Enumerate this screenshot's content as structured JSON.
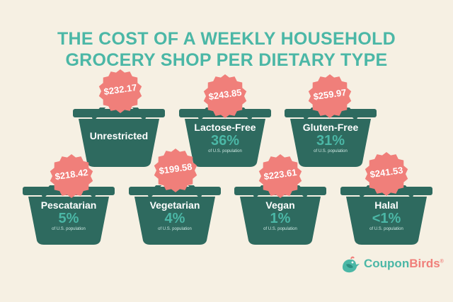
{
  "title": {
    "line1": "THE COST OF A WEEKLY HOUSEHOLD",
    "line2": "GROCERY SHOP PER DIETARY TYPE"
  },
  "colors": {
    "background": "#f6f0e3",
    "accent": "#4bb7a6",
    "basket": "#2e6a5f",
    "badge": "#f07f7a"
  },
  "baskets": [
    {
      "name": "Unrestricted",
      "price": "$232.17",
      "percent": "",
      "population": ""
    },
    {
      "name": "Lactose-Free",
      "price": "$243.85",
      "percent": "36%",
      "population": "of U.S. population"
    },
    {
      "name": "Gluten-Free",
      "price": "$259.97",
      "percent": "31%",
      "population": "of U.S. population"
    },
    {
      "name": "Pescatarian",
      "price": "$218.42",
      "percent": "5%",
      "population": "of U.S. population"
    },
    {
      "name": "Vegetarian",
      "price": "$199.58",
      "percent": "4%",
      "population": "of U.S. population"
    },
    {
      "name": "Vegan",
      "price": "$223.61",
      "percent": "1%",
      "population": "of U.S. population"
    },
    {
      "name": "Halal",
      "price": "$241.53",
      "percent": "<1%",
      "population": "of U.S. population"
    }
  ],
  "logo": {
    "part1": "Coupon",
    "part2": "Birds",
    "mark": "®",
    "icon": "bird-icon"
  }
}
